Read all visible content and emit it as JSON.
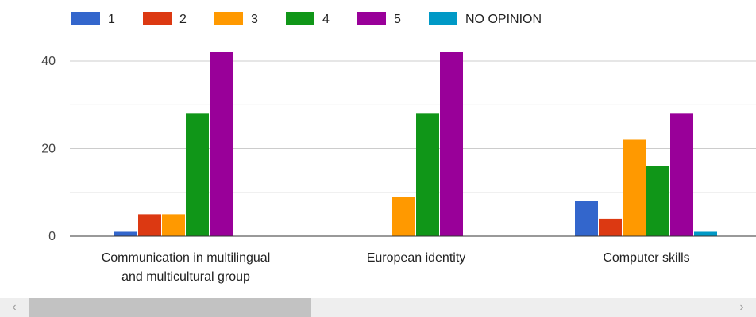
{
  "chart_data": {
    "type": "bar",
    "title": "",
    "xlabel": "",
    "ylabel": "",
    "categories": [
      [
        "Communication in multilingual",
        "and multicultural group"
      ],
      [
        "European identity"
      ],
      [
        "Computer skills"
      ]
    ],
    "series": [
      {
        "name": "1",
        "color": "#3366cc",
        "values": [
          1,
          0,
          8
        ]
      },
      {
        "name": "2",
        "color": "#dc3912",
        "values": [
          5,
          0,
          4
        ]
      },
      {
        "name": "3",
        "color": "#ff9900",
        "values": [
          5,
          9,
          22
        ]
      },
      {
        "name": "4",
        "color": "#109618",
        "values": [
          28,
          28,
          16
        ]
      },
      {
        "name": "5",
        "color": "#990099",
        "values": [
          42,
          42,
          28
        ]
      },
      {
        "name": "NO OPINION",
        "color": "#0099c6",
        "values": [
          0,
          0,
          1
        ]
      }
    ],
    "ylim": [
      0,
      42
    ],
    "yticks": [
      0,
      20,
      40
    ],
    "gridlines": [
      10,
      30
    ],
    "grid": true,
    "legend": "top"
  },
  "scrollbar": {
    "left_arrow": "‹",
    "right_arrow": "›"
  }
}
